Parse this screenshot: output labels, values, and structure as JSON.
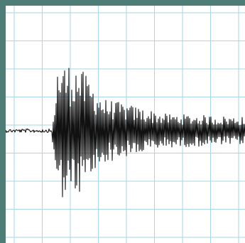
{
  "colors": {
    "frame": "#4e7d77",
    "paper": "#ffffff",
    "grid": "#a9d6e6",
    "trace": "#111111"
  },
  "seismogram": {
    "description_free": true,
    "phases": [
      "quiet",
      "onset",
      "strong-shaking",
      "decaying-coda"
    ],
    "grid_columns": 8,
    "grid_rows": 8
  }
}
